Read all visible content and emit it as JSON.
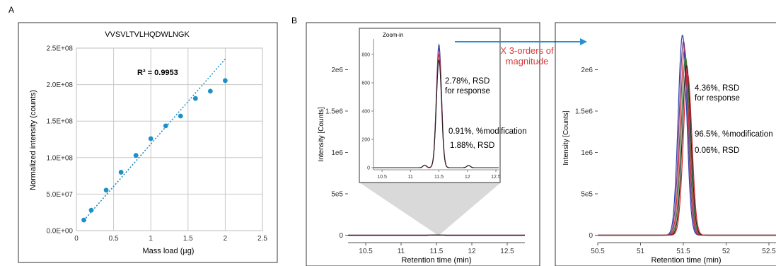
{
  "panel_labels": {
    "a": "A",
    "b": "B"
  },
  "annotations": {
    "zoom_title": "Zoom-in",
    "arrow_text_line1": "X 3-orders of",
    "arrow_text_line2": "magnitude",
    "left_rsd_response_1": "2.78%, RSD",
    "left_rsd_response_2": "for response",
    "left_modification": "0.91%, %modification",
    "left_rsd": "1.88%, RSD",
    "right_rsd_response_1": "4.36%, RSD",
    "right_rsd_response_2": "for response",
    "right_modification": "96.5%, %modification",
    "right_rsd": "0.06%, RSD"
  },
  "colors": {
    "scatter_point": "#1f8fc7",
    "trend_line": "#1f8fc7",
    "arrow": "#2a8fcf",
    "arrow_text": "#d63a3a",
    "trace_red": "#d2282f",
    "trace_blue": "#2b3fa8",
    "trace_purple": "#7a3f8f",
    "trace_green": "#3c7a3a",
    "trace_dark": "#222222",
    "zoom_wedge": "#d9d9d9"
  },
  "chart_data": [
    {
      "type": "scatter",
      "title": "VVSVLTVLHQDWLNGK",
      "xlabel": "Mass load (µg)",
      "ylabel": "Normalized intensity (counts)",
      "xlim": [
        0,
        2.5
      ],
      "ylim": [
        0,
        250000000
      ],
      "xticks": [
        0,
        0.5,
        1,
        1.5,
        2,
        2.5
      ],
      "xtick_labels": [
        "0",
        "0.5",
        "1",
        "1.5",
        "2",
        "2.5"
      ],
      "yticks": [
        0,
        50000000,
        100000000,
        150000000,
        200000000,
        250000000
      ],
      "ytick_labels": [
        "0.0E+00",
        "5.0E+07",
        "1.0E+08",
        "1.5E+08",
        "2.0E+08",
        "2.5E+08"
      ],
      "grid": true,
      "annotation": "R² = 0.9953",
      "x": [
        0.1,
        0.2,
        0.4,
        0.6,
        0.8,
        1.0,
        1.2,
        1.4,
        1.6,
        1.8,
        2.0
      ],
      "y": [
        14500000,
        28000000,
        55500000,
        80000000,
        103000000,
        126000000,
        143500000,
        157000000,
        181000000,
        191000000,
        205500000
      ],
      "trendline": {
        "x": [
          0.1,
          2.0
        ],
        "y": [
          14000000,
          235000000
        ]
      }
    },
    {
      "type": "line",
      "xlabel": "Retention time (min)",
      "ylabel": "Intensity [Counts]",
      "xlim": [
        10.25,
        12.75
      ],
      "ylim": [
        -150000,
        2500000
      ],
      "xticks": [
        10.5,
        11,
        11.5,
        12,
        12.5
      ],
      "xtick_labels": [
        "10.5",
        "11",
        "11.5",
        "12",
        "12.5"
      ],
      "yticks": [
        0,
        500000,
        1000000,
        1500000,
        2000000
      ],
      "ytick_labels": [
        "0",
        "5e5",
        "1e6",
        "1.5e6",
        "2e6"
      ],
      "peak_rt": 11.5,
      "peak_heights": [
        2400,
        2300,
        2200,
        2350
      ]
    },
    {
      "type": "line",
      "title": "Zoom-in",
      "xlim": [
        10.35,
        12.55
      ],
      "ylim": [
        -15,
        900
      ],
      "xticks": [
        10.5,
        11,
        11.5,
        12,
        12.5
      ],
      "xtick_labels": [
        "10.5",
        "11",
        "11.5",
        "12",
        "12.5"
      ],
      "yticks": [
        0,
        200,
        400,
        600,
        800
      ],
      "ytick_labels": [
        "0",
        "200",
        "400",
        "600",
        "800"
      ],
      "peak_rt": 11.5,
      "peak_heights": [
        870,
        840,
        800,
        760
      ],
      "minor_peaks": [
        {
          "x": 11.25,
          "y": 18
        },
        {
          "x": 12.02,
          "y": 16
        }
      ]
    },
    {
      "type": "line",
      "xlabel": "Retention time (min)",
      "ylabel": "Intensity [Counts]",
      "xlim": [
        50.5,
        52.75
      ],
      "ylim": [
        -150000,
        2500000
      ],
      "xticks": [
        50.5,
        51,
        51.5,
        52,
        52.5
      ],
      "xtick_labels": [
        "50.5",
        "51",
        "51.5",
        "52",
        "52.5"
      ],
      "yticks": [
        0,
        500000,
        1000000,
        1500000,
        2000000
      ],
      "ytick_labels": [
        "0",
        "5e5",
        "1e6",
        "1.5e6",
        "2e6"
      ],
      "peak_rt": 51.52,
      "peak_heights": [
        2420000,
        2350000,
        2250000,
        2150000,
        2050000,
        1950000
      ]
    }
  ]
}
